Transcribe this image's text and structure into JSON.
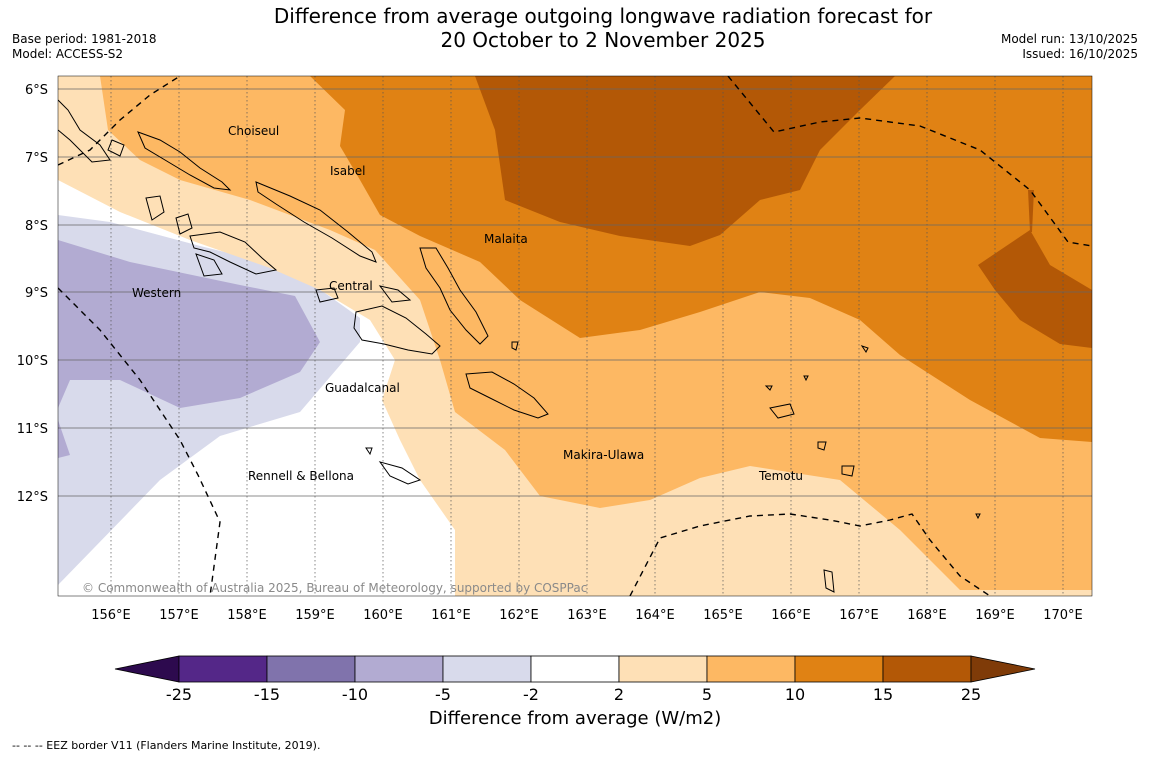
{
  "header": {
    "title_line1": "Difference from average outgoing longwave radiation forecast for",
    "title_line2": "20 October to 2 November 2025",
    "base_period": "Base period: 1981-2018",
    "model": "Model: ACCESS-S2",
    "model_run": "Model run: 13/10/2025",
    "issued": "Issued: 16/10/2025"
  },
  "map": {
    "copyright": "© Commonwealth of Australia 2025, Bureau of Meteorology, supported by COSPPac",
    "lon_labels": [
      "156°E",
      "157°E",
      "158°E",
      "159°E",
      "160°E",
      "161°E",
      "162°E",
      "163°E",
      "164°E",
      "165°E",
      "166°E",
      "167°E",
      "168°E",
      "169°E",
      "170°E"
    ],
    "lat_labels": [
      "6°S",
      "7°S",
      "8°S",
      "9°S",
      "10°S",
      "11°S",
      "12°S"
    ],
    "provinces": [
      "Choiseul",
      "Isabel",
      "Malaita",
      "Western",
      "Central",
      "Guadalcanal",
      "Makira-Ulawa",
      "Rennell & Bellona",
      "Temotu"
    ]
  },
  "colorbar": {
    "title": "Difference from average (W/m2)",
    "ticks": [
      "-25",
      "-15",
      "-10",
      "-5",
      "-2",
      "2",
      "5",
      "10",
      "15",
      "25"
    ],
    "colors": {
      "below_min": "#2d0a4e",
      "neg25_15": "#542788",
      "neg15_10": "#8073ac",
      "neg10_5": "#b2abd2",
      "neg5_2": "#d8daeb",
      "neutral": "#ffffff",
      "pos2_5": "#fee0b6",
      "pos5_10": "#fdb863",
      "pos10_15": "#e08214",
      "pos15_25": "#b35806",
      "above_max": "#7f3b08"
    }
  },
  "footer": {
    "eez_note": "--  --  -- EEZ border V11 (Flanders Marine Institute, 2019)."
  }
}
